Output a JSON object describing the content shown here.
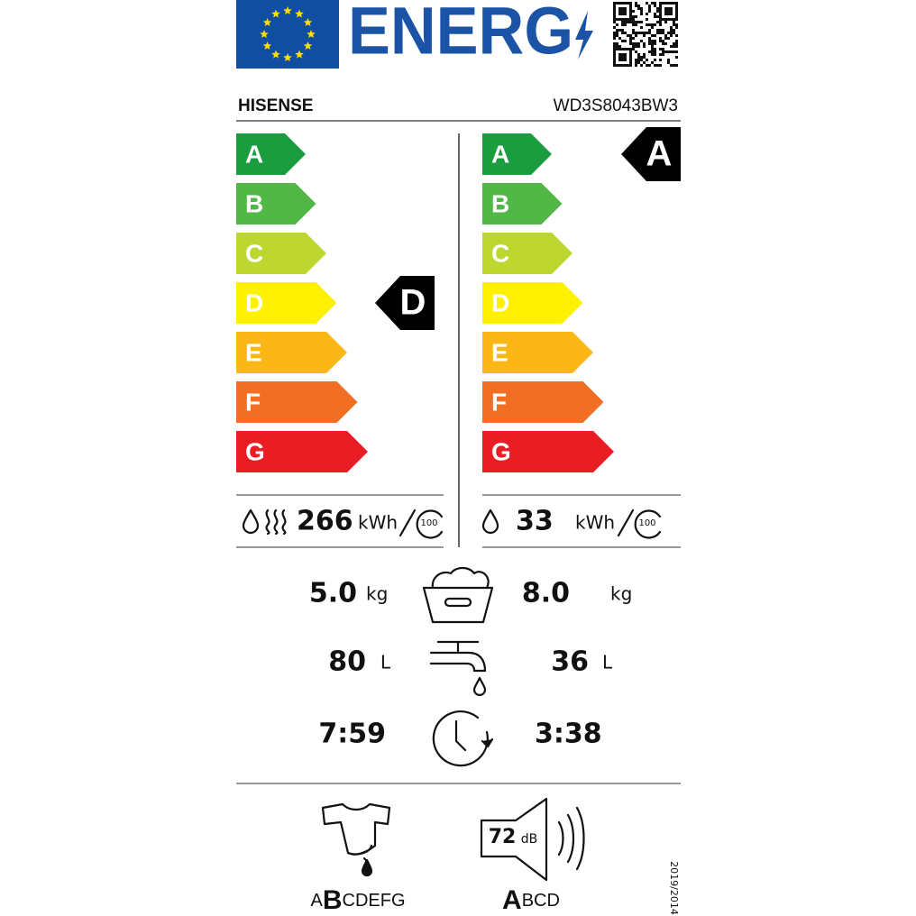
{
  "header": {
    "title": "ENERG",
    "brand": "HISENSE",
    "model": "WD3S8043BW3"
  },
  "energy_classes": [
    "A",
    "B",
    "C",
    "D",
    "E",
    "F",
    "G"
  ],
  "washing_drying": {
    "rating": "D",
    "energy": "266",
    "energy_unit": "kWh",
    "cycles": "100",
    "capacity": "5.0",
    "capacity_unit": "kg",
    "water": "80",
    "water_unit": "L",
    "duration": "7:59"
  },
  "washing": {
    "rating": "A",
    "energy": "33",
    "energy_unit": "kWh",
    "cycles": "100",
    "capacity": "8.0",
    "capacity_unit": "kg",
    "water": "36",
    "water_unit": "L",
    "duration": "3:38"
  },
  "spin_class": {
    "classes": [
      "A",
      "B",
      "C",
      "D",
      "E",
      "F",
      "G"
    ],
    "rating": "B"
  },
  "noise": {
    "value": "72",
    "unit": "dB",
    "classes": [
      "A",
      "B",
      "C",
      "D"
    ],
    "rating": "A"
  },
  "regulation": "2019/2014"
}
